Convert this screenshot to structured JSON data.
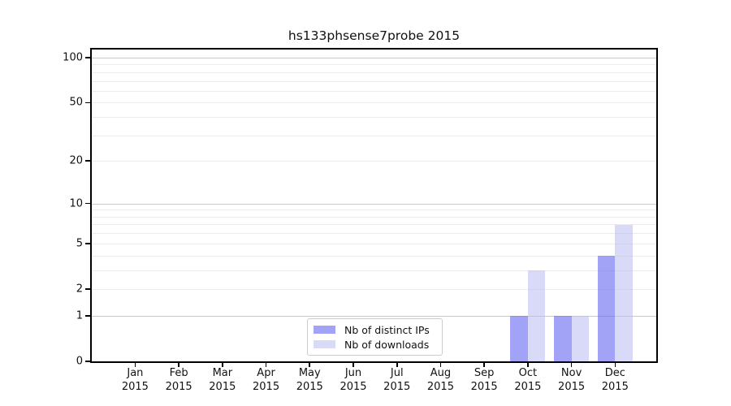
{
  "chart_data": {
    "type": "bar",
    "title": "hs133phsense7probe 2015",
    "categories": [
      [
        "Jan",
        "2015"
      ],
      [
        "Feb",
        "2015"
      ],
      [
        "Mar",
        "2015"
      ],
      [
        "Apr",
        "2015"
      ],
      [
        "May",
        "2015"
      ],
      [
        "Jun",
        "2015"
      ],
      [
        "Jul",
        "2015"
      ],
      [
        "Aug",
        "2015"
      ],
      [
        "Sep",
        "2015"
      ],
      [
        "Oct",
        "2015"
      ],
      [
        "Nov",
        "2015"
      ],
      [
        "Dec",
        "2015"
      ]
    ],
    "series": [
      {
        "name": "Nb of distinct IPs",
        "key": "distinct-ips",
        "color": "#aaaaf6",
        "fill": "rgba(105,105,242,0.62)",
        "values": [
          0,
          0,
          0,
          0,
          0,
          0,
          0,
          0,
          0,
          1,
          1,
          4
        ]
      },
      {
        "name": "Nb of downloads",
        "key": "downloads",
        "color": "#dadaf9",
        "fill": "rgba(186,186,243,0.55)",
        "values": [
          0,
          0,
          0,
          0,
          0,
          0,
          0,
          0,
          0,
          3,
          1,
          7
        ]
      }
    ],
    "yscale": "log1p",
    "ylim": [
      0,
      100
    ],
    "y_ticks": [
      0,
      1,
      2,
      5,
      10,
      20,
      50,
      100
    ],
    "y_major_gridlines": [
      1,
      10,
      100
    ],
    "y_minor_gridlines": [
      2,
      3,
      4,
      5,
      6,
      7,
      8,
      9,
      20,
      30,
      40,
      50,
      60,
      70,
      80,
      90
    ],
    "grid": true,
    "grid_major_color": "#c8c8c8",
    "grid_minor_color": "#ececec",
    "axis_color": "#000000",
    "legend_position": "lower center"
  }
}
